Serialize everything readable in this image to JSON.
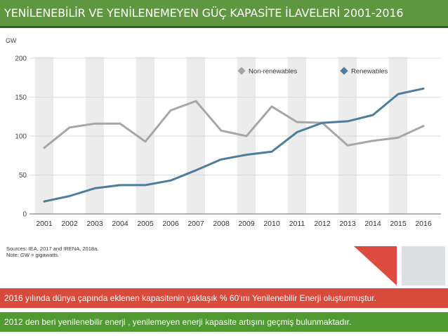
{
  "slide": {
    "title": "YENİLENEBİLİR VE YENİLENEMEYEN GÜÇ KAPASİTE İLAVELERİ 2001-2016",
    "sources_line1": "Sources: IEA, 2017 and IRENA, 2018a.",
    "sources_line2": "Note: GW = gigawatts.",
    "note1": "2016 yılında dünya çapında eklenen kapasitenin yaklaşık % 60'ını  Yenilenebilir Enerji oluşturmuştur.",
    "note2": "2012 den beri yenilenebilir enerji , yenilemeyen enerji kapasite artışını geçmiş bulunmaktadır."
  },
  "chart_data": {
    "type": "line",
    "title": "",
    "xlabel": "",
    "ylabel": "GW",
    "x": [
      "2001",
      "2002",
      "2003",
      "2004",
      "2005",
      "2006",
      "2007",
      "2008",
      "2009",
      "2010",
      "2011",
      "2012",
      "2013",
      "2014",
      "2015",
      "2016"
    ],
    "ylim": [
      0,
      200
    ],
    "yticks": [
      "0",
      "50",
      "100",
      "150",
      "200"
    ],
    "grid": true,
    "legend_position": "top-right",
    "series": [
      {
        "name": "Non-renewables",
        "color": "#a6a6a6",
        "values": [
          85,
          111,
          116,
          116,
          93,
          133,
          145,
          107,
          100,
          138,
          118,
          117,
          88,
          94,
          98,
          113
        ]
      },
      {
        "name": "Renewables",
        "color": "#4d7d9a",
        "values": [
          16,
          23,
          33,
          37,
          37,
          43,
          56,
          70,
          76,
          80,
          105,
          117,
          119,
          127,
          154,
          161
        ]
      }
    ]
  },
  "colors": {
    "title_bar": "#5f9740",
    "note1_bg": "#d84a3c",
    "note2_bg": "#4f9a31",
    "band": "#ececec"
  }
}
